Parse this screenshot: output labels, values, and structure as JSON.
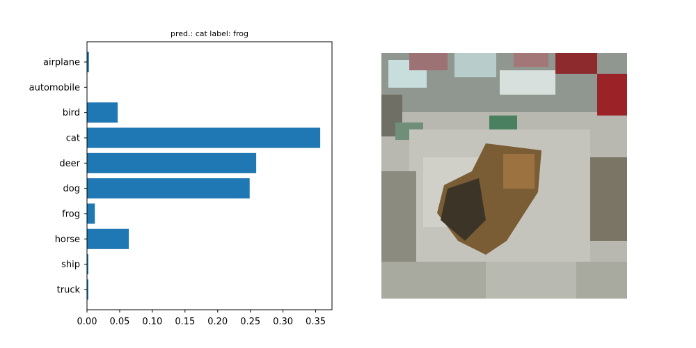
{
  "chart_data": {
    "type": "bar",
    "orientation": "horizontal",
    "title": "pred.: cat   label: frog",
    "categories": [
      "airplane",
      "automobile",
      "bird",
      "cat",
      "deer",
      "dog",
      "frog",
      "horse",
      "ship",
      "truck"
    ],
    "values": [
      0.003,
      0.0005,
      0.047,
      0.357,
      0.259,
      0.249,
      0.012,
      0.064,
      0.002,
      0.002
    ],
    "xlim": [
      0,
      0.375
    ],
    "xticks": [
      "0.00",
      "0.05",
      "0.10",
      "0.15",
      "0.20",
      "0.25",
      "0.30",
      "0.35"
    ],
    "xtick_values": [
      0,
      0.05,
      0.1,
      0.15,
      0.2,
      0.25,
      0.3,
      0.35
    ],
    "xlabel": "",
    "ylabel": "",
    "grid": false,
    "bar_color": "#1f77b4"
  }
}
